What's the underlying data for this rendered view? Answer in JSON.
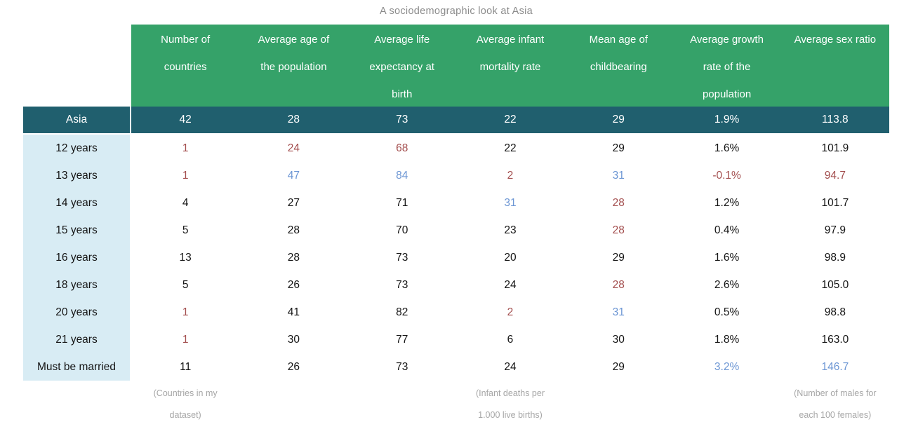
{
  "title": "A sociodemographic look at Asia",
  "colors": {
    "green": "#35a269",
    "teal": "#205f6e",
    "labelbg": "#d8ecf4",
    "red": "#a34e4e",
    "blue": "#6c96d4",
    "muted": "#8b8b8b",
    "notegray": "#a6a6a6"
  },
  "chart_data": {
    "type": "table",
    "title": "A sociodemographic look at Asia",
    "columns": [
      {
        "label": "Number of\ncountries",
        "note": "(Countries in my\ndataset)"
      },
      {
        "label": "Average age of\nthe population",
        "note": ""
      },
      {
        "label": "Average life\nexpectancy at\nbirth",
        "note": ""
      },
      {
        "label": "Average infant\nmortality rate",
        "note": "(Infant deaths per\n1.000 live births)"
      },
      {
        "label": "Mean age of\nchildbearing",
        "note": ""
      },
      {
        "label": "Average growth\nrate of the\npopulation",
        "note": ""
      },
      {
        "label": "Average sex ratio",
        "note": "(Number of males for\neach 100 females)"
      }
    ],
    "summary_row": {
      "label": "Asia",
      "values": [
        "42",
        "28",
        "73",
        "22",
        "29",
        "1.9%",
        "113.8"
      ]
    },
    "rows": [
      {
        "label": "12 years",
        "cells": [
          {
            "v": "1",
            "c": "red"
          },
          {
            "v": "24",
            "c": "red"
          },
          {
            "v": "68",
            "c": "red"
          },
          {
            "v": "22"
          },
          {
            "v": "29"
          },
          {
            "v": "1.6%"
          },
          {
            "v": "101.9"
          }
        ]
      },
      {
        "label": "13 years",
        "cells": [
          {
            "v": "1",
            "c": "red"
          },
          {
            "v": "47",
            "c": "blue"
          },
          {
            "v": "84",
            "c": "blue"
          },
          {
            "v": "2",
            "c": "red"
          },
          {
            "v": "31",
            "c": "blue"
          },
          {
            "v": "-0.1%",
            "c": "red"
          },
          {
            "v": "94.7",
            "c": "red"
          }
        ]
      },
      {
        "label": "14 years",
        "cells": [
          {
            "v": "4"
          },
          {
            "v": "27"
          },
          {
            "v": "71"
          },
          {
            "v": "31",
            "c": "blue"
          },
          {
            "v": "28",
            "c": "red"
          },
          {
            "v": "1.2%"
          },
          {
            "v": "101.7"
          }
        ]
      },
      {
        "label": "15 years",
        "cells": [
          {
            "v": "5"
          },
          {
            "v": "28"
          },
          {
            "v": "70"
          },
          {
            "v": "23"
          },
          {
            "v": "28",
            "c": "red"
          },
          {
            "v": "0.4%"
          },
          {
            "v": "97.9"
          }
        ]
      },
      {
        "label": "16 years",
        "cells": [
          {
            "v": "13"
          },
          {
            "v": "28"
          },
          {
            "v": "73"
          },
          {
            "v": "20"
          },
          {
            "v": "29"
          },
          {
            "v": "1.6%"
          },
          {
            "v": "98.9"
          }
        ]
      },
      {
        "label": "18 years",
        "cells": [
          {
            "v": "5"
          },
          {
            "v": "26"
          },
          {
            "v": "73"
          },
          {
            "v": "24"
          },
          {
            "v": "28",
            "c": "red"
          },
          {
            "v": "2.6%"
          },
          {
            "v": "105.0"
          }
        ]
      },
      {
        "label": "20 years",
        "cells": [
          {
            "v": "1",
            "c": "red"
          },
          {
            "v": "41"
          },
          {
            "v": "82"
          },
          {
            "v": "2",
            "c": "red"
          },
          {
            "v": "31",
            "c": "blue"
          },
          {
            "v": "0.5%"
          },
          {
            "v": "98.8"
          }
        ]
      },
      {
        "label": "21 years",
        "cells": [
          {
            "v": "1",
            "c": "red"
          },
          {
            "v": "30"
          },
          {
            "v": "77"
          },
          {
            "v": "6"
          },
          {
            "v": "30"
          },
          {
            "v": "1.8%"
          },
          {
            "v": "163.0"
          }
        ]
      },
      {
        "label": "Must be married",
        "cells": [
          {
            "v": "11"
          },
          {
            "v": "26"
          },
          {
            "v": "73"
          },
          {
            "v": "24"
          },
          {
            "v": "29"
          },
          {
            "v": "3.2%",
            "c": "blue"
          },
          {
            "v": "146.7",
            "c": "blue"
          }
        ]
      }
    ]
  }
}
